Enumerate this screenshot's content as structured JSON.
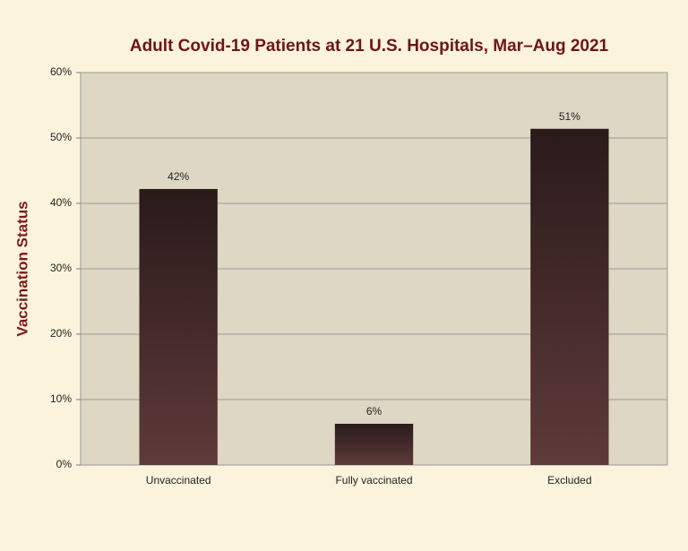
{
  "chart_data": {
    "type": "bar",
    "title": "Adult Covid-19 Patients at 21 U.S. Hospitals, Mar–Aug 2021",
    "y_label": "Vaccination Status",
    "categories": [
      "Unvaccinated",
      "Fully vaccinated",
      "Excluded"
    ],
    "values": [
      42.2,
      6.3,
      51.4
    ],
    "value_labels": [
      "42%",
      "6%",
      "51%"
    ],
    "color": "#5e3a3a",
    "ylim": [
      0,
      60
    ],
    "yticks": [
      {
        "value": 0,
        "label": "0%"
      },
      {
        "value": 10,
        "label": "10%"
      },
      {
        "value": 20,
        "label": "20%"
      },
      {
        "value": 30,
        "label": "30%"
      },
      {
        "value": 40,
        "label": "40%"
      },
      {
        "value": 50,
        "label": "50%"
      },
      {
        "value": 60,
        "label": "60%"
      }
    ],
    "grid": true
  }
}
